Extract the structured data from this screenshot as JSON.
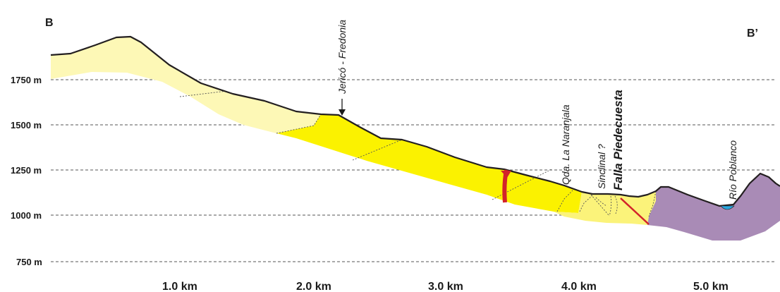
{
  "section": {
    "start_label": "B",
    "end_label": "B’",
    "elevation_labels": [
      "1750 m",
      "1500 m",
      "1250 m",
      "1000 m",
      "750 m"
    ],
    "distance_labels": [
      "1.0 km",
      "2.0 km",
      "3.0 km",
      "4.0 km",
      "5.0 km"
    ],
    "annotations": {
      "town": "Jericó - Fredonia",
      "creek": "Qda. La Naranjala",
      "syncline": "Sinclinal ?",
      "fault": "Falla Piedecuesta",
      "river": "Río Poblanco"
    },
    "colors": {
      "unit_pale": "#fdf8b6",
      "unit_yellow": "#fbf200",
      "unit_light": "#fbf37a",
      "unit_purple": "#a98bb6",
      "fault_red": "#d2232a",
      "river_blue": "#2aa7df",
      "outline": "#231f20"
    }
  }
}
